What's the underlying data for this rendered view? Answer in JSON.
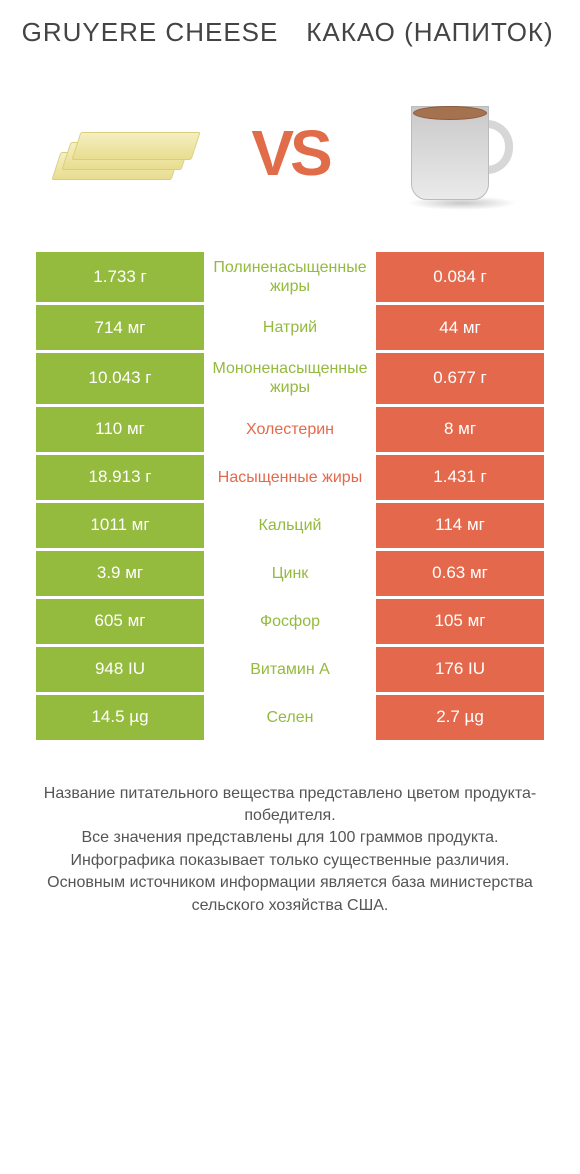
{
  "colors": {
    "left": "#94ba3e",
    "right": "#e4694c",
    "vs": "#e06c4a",
    "title": "#444444",
    "footer": "#555555",
    "bg": "#ffffff"
  },
  "titles": {
    "left": "GRUYERE CHEESE",
    "right": "КАКАО (НАПИТОК)"
  },
  "vs_text": "VS",
  "rows": [
    {
      "label": "Полиненасыщенные жиры",
      "left": "1.733 г",
      "right": "0.084 г",
      "winner": "left"
    },
    {
      "label": "Натрий",
      "left": "714 мг",
      "right": "44 мг",
      "winner": "left"
    },
    {
      "label": "Мононенасыщенные жиры",
      "left": "10.043 г",
      "right": "0.677 г",
      "winner": "left"
    },
    {
      "label": "Холестерин",
      "left": "110 мг",
      "right": "8 мг",
      "winner": "right"
    },
    {
      "label": "Насыщенные жиры",
      "left": "18.913 г",
      "right": "1.431 г",
      "winner": "right"
    },
    {
      "label": "Кальций",
      "left": "1011 мг",
      "right": "114 мг",
      "winner": "left"
    },
    {
      "label": "Цинк",
      "left": "3.9 мг",
      "right": "0.63 мг",
      "winner": "left"
    },
    {
      "label": "Фосфор",
      "left": "605 мг",
      "right": "105 мг",
      "winner": "left"
    },
    {
      "label": "Витамин A",
      "left": "948 IU",
      "right": "176 IU",
      "winner": "left"
    },
    {
      "label": "Селен",
      "left": "14.5 µg",
      "right": "2.7 µg",
      "winner": "left"
    }
  ],
  "footer_lines": [
    "Название питательного вещества представлено цветом продукта-победителя.",
    "Все значения представлены для 100 граммов продукта.",
    "Инфографика показывает только существенные различия.",
    "Основным источником информации является база министерства сельского хозяйства США."
  ]
}
